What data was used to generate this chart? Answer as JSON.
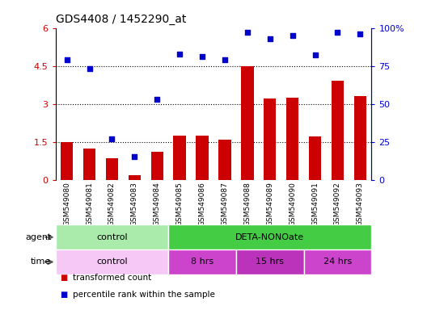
{
  "title": "GDS4408 / 1452290_at",
  "samples": [
    "GSM549080",
    "GSM549081",
    "GSM549082",
    "GSM549083",
    "GSM549084",
    "GSM549085",
    "GSM549086",
    "GSM549087",
    "GSM549088",
    "GSM549089",
    "GSM549090",
    "GSM549091",
    "GSM549092",
    "GSM549093"
  ],
  "bar_values": [
    1.5,
    1.25,
    0.85,
    0.18,
    1.1,
    1.75,
    1.75,
    1.6,
    4.5,
    3.2,
    3.25,
    1.7,
    3.9,
    3.3
  ],
  "dot_values": [
    79,
    73,
    27,
    15,
    53,
    83,
    81,
    79,
    97,
    93,
    95,
    82,
    97,
    96
  ],
  "bar_color": "#cc0000",
  "dot_color": "#0000cc",
  "ylim_left": [
    0,
    6
  ],
  "yticks_left": [
    0,
    1.5,
    3.0,
    4.5,
    6.0
  ],
  "ytick_labels_left": [
    "0",
    "1.5",
    "3",
    "4.5",
    "6"
  ],
  "ytick_labels_right": [
    "0",
    "25",
    "50",
    "75",
    "100%"
  ],
  "hlines": [
    1.5,
    3.0,
    4.5
  ],
  "agent_groups": [
    {
      "label": "control",
      "start": 0,
      "end": 5,
      "color": "#aaeaaa"
    },
    {
      "label": "DETA-NONOate",
      "start": 5,
      "end": 14,
      "color": "#44cc44"
    }
  ],
  "time_groups": [
    {
      "label": "control",
      "start": 0,
      "end": 5,
      "color": "#f5c8f5"
    },
    {
      "label": "8 hrs",
      "start": 5,
      "end": 8,
      "color": "#cc44cc"
    },
    {
      "label": "15 hrs",
      "start": 8,
      "end": 11,
      "color": "#bb33bb"
    },
    {
      "label": "24 hrs",
      "start": 11,
      "end": 14,
      "color": "#cc44cc"
    }
  ],
  "legend_items": [
    {
      "label": "transformed count",
      "color": "#cc0000"
    },
    {
      "label": "percentile rank within the sample",
      "color": "#0000cc"
    }
  ],
  "agent_label": "agent",
  "time_label": "time",
  "tick_bg_color": "#cccccc",
  "fig_bg": "#ffffff"
}
